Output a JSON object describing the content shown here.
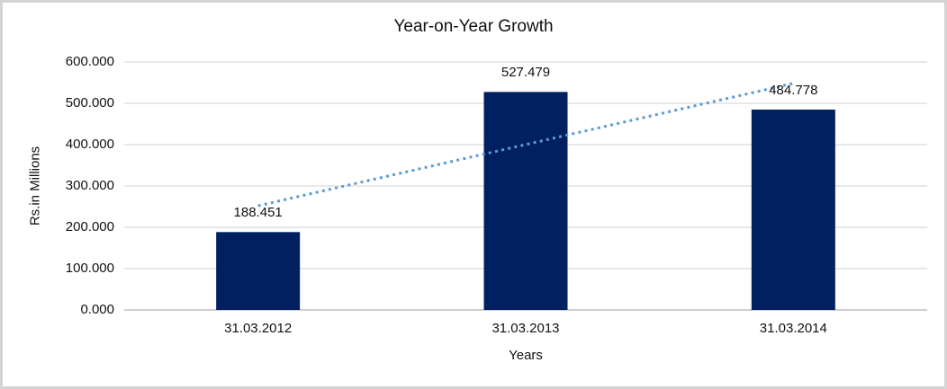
{
  "chart_data": {
    "type": "bar",
    "title": "Year-on-Year Growth",
    "xlabel": "Years",
    "ylabel": "Rs.in Millions",
    "categories": [
      "31.03.2012",
      "31.03.2013",
      "31.03.2014"
    ],
    "values": [
      188.451,
      527.479,
      484.778
    ],
    "data_labels": [
      "188.451",
      "527.479",
      "484.778"
    ],
    "ylim": [
      0,
      600
    ],
    "ytick_step": 100,
    "ytick_labels": [
      "0.000",
      "100.000",
      "200.000",
      "300.000",
      "400.000",
      "500.000",
      "600.000"
    ],
    "grid": true,
    "legend": "none",
    "colors": {
      "bar": "#002060",
      "trendline": "#5B9BD5",
      "gridline": "#D9D9D9",
      "axis_line": "#C0C0C0",
      "text": "#111111",
      "border": "#D4D4D4"
    },
    "trendline": {
      "type": "linear",
      "style": "dotted"
    }
  }
}
